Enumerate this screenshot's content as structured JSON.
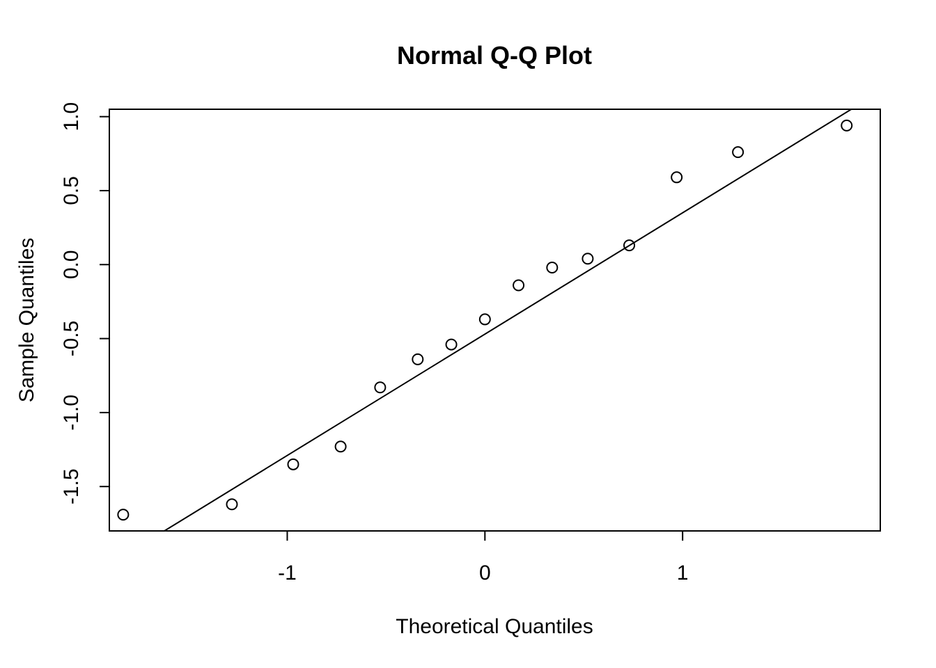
{
  "chart_data": {
    "type": "scatter",
    "title": "Normal Q-Q Plot",
    "xlabel": "Theoretical Quantiles",
    "ylabel": "Sample Quantiles",
    "xlim": [
      -1.9,
      2.0
    ],
    "ylim": [
      -1.8,
      1.05
    ],
    "x_ticks": [
      -1,
      0,
      1
    ],
    "x_tick_labels": [
      "-1",
      "0",
      "1"
    ],
    "y_ticks": [
      -1.5,
      -1.0,
      -0.5,
      0.0,
      0.5,
      1.0
    ],
    "y_tick_labels": [
      "-1.5",
      "-1.0",
      "-0.5",
      "0.0",
      "0.5",
      "1.0"
    ],
    "grid": false,
    "points": [
      {
        "x": -1.83,
        "y": -1.69
      },
      {
        "x": -1.28,
        "y": -1.62
      },
      {
        "x": -0.97,
        "y": -1.35
      },
      {
        "x": -0.73,
        "y": -1.23
      },
      {
        "x": -0.53,
        "y": -0.83
      },
      {
        "x": -0.34,
        "y": -0.64
      },
      {
        "x": -0.17,
        "y": -0.54
      },
      {
        "x": 0.0,
        "y": -0.37
      },
      {
        "x": 0.17,
        "y": -0.14
      },
      {
        "x": 0.34,
        "y": -0.02
      },
      {
        "x": 0.52,
        "y": 0.04
      },
      {
        "x": 0.73,
        "y": 0.13
      },
      {
        "x": 0.97,
        "y": 0.59
      },
      {
        "x": 1.28,
        "y": 0.76
      },
      {
        "x": 1.83,
        "y": 0.94
      }
    ],
    "reference_line": {
      "intercept": -0.47,
      "slope": 0.82
    }
  }
}
